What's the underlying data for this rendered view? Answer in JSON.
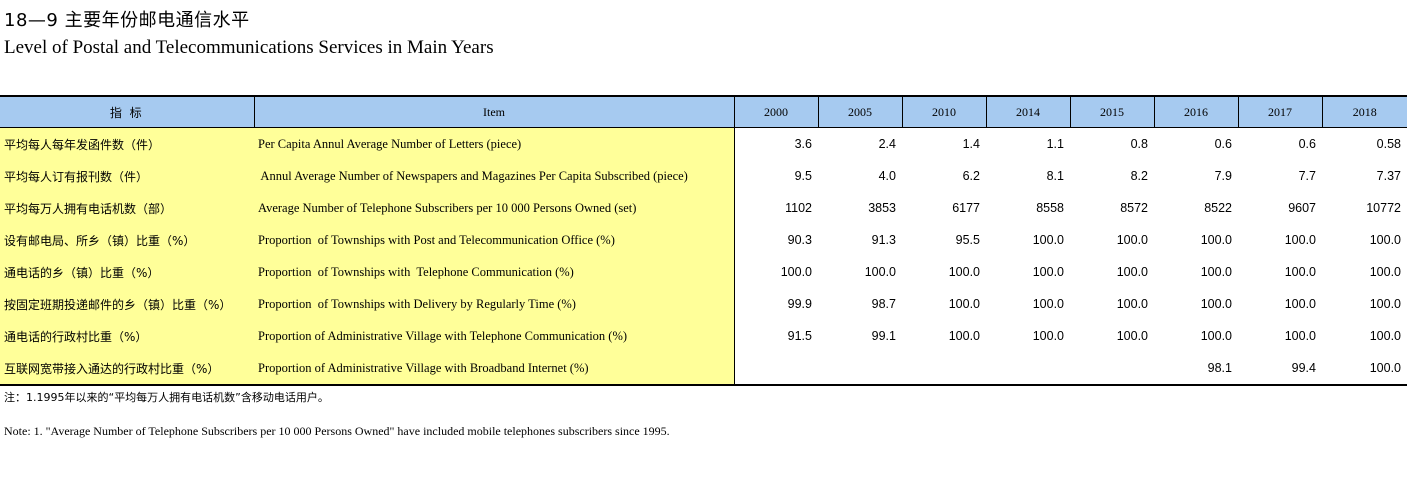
{
  "title": {
    "cn": "18—9  主要年份邮电通信水平",
    "en": "Level of Postal and Telecommunications Services in Main Years"
  },
  "table": {
    "header_cn": "指  标",
    "header_item": "Item",
    "years": [
      "2000",
      "2005",
      "2010",
      "2014",
      "2015",
      "2016",
      "2017",
      "2018"
    ],
    "rows": [
      {
        "cn": "平均每人每年发函件数（件）",
        "en": "Per Capita Annul Average Number of Letters (piece)",
        "values": [
          "3.6",
          "2.4",
          "1.4",
          "1.1",
          "0.8",
          "0.6",
          "0.6",
          "0.58"
        ]
      },
      {
        "cn": "平均每人订有报刊数（件）",
        "en": " Annul Average Number of Newspapers and Magazines Per Capita Subscribed (piece)",
        "values": [
          "9.5",
          "4.0",
          "6.2",
          "8.1",
          "8.2",
          "7.9",
          "7.7",
          "7.37"
        ]
      },
      {
        "cn": "平均每万人拥有电话机数（部）",
        "en": "Average Number of Telephone Subscribers per 10 000 Persons Owned (set)",
        "values": [
          "1102",
          "3853",
          "6177",
          "8558",
          "8572",
          "8522",
          "9607",
          "10772"
        ]
      },
      {
        "cn": "设有邮电局、所乡（镇）比重（%）",
        "en": "Proportion  of Townships with Post and Telecommunication Office (%)",
        "values": [
          "90.3",
          "91.3",
          "95.5",
          "100.0",
          "100.0",
          "100.0",
          "100.0",
          "100.0"
        ]
      },
      {
        "cn": "通电话的乡（镇）比重（%）",
        "en": "Proportion  of Townships with  Telephone Communication (%)",
        "values": [
          "100.0",
          "100.0",
          "100.0",
          "100.0",
          "100.0",
          "100.0",
          "100.0",
          "100.0"
        ]
      },
      {
        "cn": "按固定班期投递邮件的乡（镇）比重（%）",
        "en": "Proportion  of Townships with Delivery by Regularly Time (%)",
        "values": [
          "99.9",
          "98.7",
          "100.0",
          "100.0",
          "100.0",
          "100.0",
          "100.0",
          "100.0"
        ]
      },
      {
        "cn": "通电话的行政村比重（%）",
        "en": "Proportion of Administrative Village with Telephone Communication (%)",
        "values": [
          "91.5",
          "99.1",
          "100.0",
          "100.0",
          "100.0",
          "100.0",
          "100.0",
          "100.0"
        ]
      },
      {
        "cn": "互联网宽带接入通达的行政村比重（%）",
        "en": "Proportion of Administrative Village with Broadband Internet (%)",
        "values": [
          "",
          "",
          "",
          "",
          "",
          "98.1",
          "99.4",
          "100.0"
        ]
      }
    ]
  },
  "notes": {
    "cn": "注：1.1995年以来的“平均每万人拥有电话机数”含移动电话用户。",
    "en": "Note:  1.  \"Average Number of Telephone Subscribers per 10 000 Persons Owned\" have included  mobile telephones subscribers since 1995."
  },
  "colors": {
    "header_bg": "#a6caf0",
    "label_bg": "#ffff99"
  }
}
